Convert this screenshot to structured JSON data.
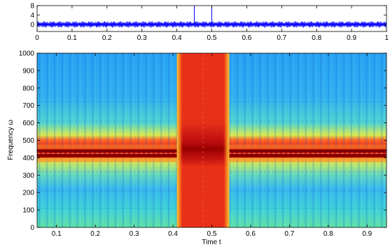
{
  "chart_data": [
    {
      "type": "line",
      "title": "",
      "xlabel": "",
      "ylabel": "",
      "xlim": [
        0,
        1
      ],
      "ylim": [
        -3,
        8
      ],
      "x_ticks": [
        "0",
        "0.1",
        "0.2",
        "0.3",
        "0.4",
        "0.5",
        "0.6",
        "0.7",
        "0.8",
        "0.9",
        "1"
      ],
      "y_ticks": [
        "8",
        "4",
        "0"
      ],
      "grid": false,
      "series": [
        {
          "color": "#0000ff",
          "oscillation_amplitude": 1.4,
          "oscillation_cycles": 46,
          "spikes": [
            {
              "x": 0.45,
              "y": 8
            },
            {
              "x": 0.5,
              "y": 8
            }
          ]
        }
      ]
    },
    {
      "type": "heatmap",
      "title": "",
      "xlabel": "Time t",
      "ylabel": "Frequency ω",
      "xlim": [
        0.05,
        0.95
      ],
      "ylim": [
        0,
        1000
      ],
      "x_ticks": [
        "0.1",
        "0.2",
        "0.3",
        "0.4",
        "0.5",
        "0.6",
        "0.7",
        "0.8",
        "0.9"
      ],
      "y_ticks": [
        "0",
        "100",
        "200",
        "300",
        "400",
        "500",
        "600",
        "700",
        "800",
        "900",
        "1000"
      ],
      "colormap": "jet",
      "features": {
        "horizontal_band_hz": [
          400,
          450
        ],
        "vertical_band_t": [
          0.41,
          0.545
        ],
        "striation_period_t": 0.0196
      }
    }
  ]
}
